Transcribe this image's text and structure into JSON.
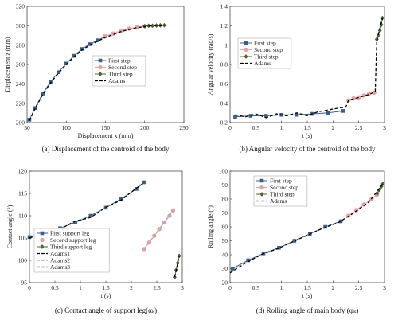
{
  "chart_data": [
    {
      "type": "line",
      "caption": "(a) Displacement of the centroid of the body",
      "xlabel": "Displacement  x (mm)",
      "ylabel": "Displacement  z (mm)",
      "xlim": [
        50,
        250
      ],
      "ylim": [
        200,
        320
      ],
      "xticks": [
        50,
        100,
        150,
        200,
        250
      ],
      "yticks": [
        200,
        220,
        240,
        260,
        280,
        300,
        320
      ],
      "legend_position": "center-right",
      "series": [
        {
          "name": "First step",
          "style": "marker-square",
          "color": "#3a5f8a",
          "x": [
            53,
            60,
            70,
            80,
            90,
            100,
            110,
            120,
            130,
            140,
            150
          ],
          "y": [
            203,
            215,
            230,
            242,
            252,
            261,
            269,
            276,
            281,
            285,
            289
          ]
        },
        {
          "name": "Second step",
          "style": "marker-circle",
          "color": "#e8a0a0",
          "x": [
            150,
            160,
            170,
            180,
            190,
            200
          ],
          "y": [
            289,
            292,
            295,
            297,
            298.5,
            299.5
          ]
        },
        {
          "name": "Third step",
          "style": "marker-diamond",
          "color": "#4a6a2a",
          "x": [
            200,
            205,
            210,
            215,
            220,
            225
          ],
          "y": [
            299.5,
            300,
            300,
            300.2,
            300.4,
            300.5
          ]
        },
        {
          "name": "Adams",
          "style": "dashed",
          "color": "#000000",
          "x": [
            53,
            60,
            70,
            80,
            90,
            100,
            110,
            120,
            130,
            140,
            150,
            160,
            170,
            180,
            190,
            200,
            210,
            220,
            225
          ],
          "y": [
            202,
            214,
            229,
            241,
            251,
            260,
            268,
            275,
            280,
            284,
            288,
            291,
            294,
            296,
            298,
            299,
            300,
            300,
            300
          ]
        }
      ]
    },
    {
      "type": "line",
      "caption": "(b) Angular velocity of the centroid of the body",
      "xlabel": "t (s)",
      "ylabel": "Angular velocity (rad/s)",
      "xlim": [
        0,
        3
      ],
      "ylim": [
        0.2,
        1.4
      ],
      "xticks": [
        0,
        0.5,
        1,
        1.5,
        2,
        2.5,
        3
      ],
      "yticks": [
        0.2,
        0.4,
        0.6,
        0.8,
        1,
        1.2,
        1.4
      ],
      "legend_position": "center-left",
      "series": [
        {
          "name": "First step",
          "style": "marker-square",
          "color": "#3a5f8a",
          "x": [
            0.1,
            0.4,
            0.7,
            1.0,
            1.3,
            1.6,
            1.9,
            2.2
          ],
          "y": [
            0.26,
            0.27,
            0.27,
            0.28,
            0.28,
            0.29,
            0.3,
            0.32
          ]
        },
        {
          "name": "Second step",
          "style": "marker-circle",
          "color": "#e8a0a0",
          "x": [
            2.3,
            2.4,
            2.5,
            2.6,
            2.7,
            2.8
          ],
          "y": [
            0.43,
            0.45,
            0.46,
            0.48,
            0.5,
            0.51
          ]
        },
        {
          "name": "Third step",
          "style": "marker-diamond",
          "color": "#4a6a2a",
          "x": [
            2.85,
            2.88,
            2.91,
            2.94,
            2.96
          ],
          "y": [
            1.06,
            1.1,
            1.15,
            1.21,
            1.28
          ]
        },
        {
          "name": "Adams",
          "style": "dashed",
          "color": "#000000",
          "x": [
            0.1,
            0.3,
            0.5,
            0.7,
            0.9,
            1.1,
            1.3,
            1.5,
            1.7,
            1.9,
            2.1,
            2.25,
            2.3,
            2.5,
            2.7,
            2.82,
            2.85,
            2.9,
            2.96
          ],
          "y": [
            0.28,
            0.26,
            0.29,
            0.25,
            0.29,
            0.27,
            0.3,
            0.27,
            0.31,
            0.33,
            0.35,
            0.36,
            0.43,
            0.46,
            0.49,
            0.52,
            1.05,
            1.15,
            1.28
          ]
        }
      ]
    },
    {
      "type": "line",
      "caption": "(c) Contact angle of support leg(αₖ)",
      "xlabel": "t (s)",
      "ylabel": "Contact angle (°)",
      "xlim": [
        0,
        3
      ],
      "ylim": [
        95,
        120
      ],
      "xticks": [
        0,
        0.5,
        1,
        1.5,
        2,
        2.5,
        3
      ],
      "yticks": [
        95,
        100,
        105,
        110,
        115,
        120
      ],
      "legend_position": "lower-left",
      "series": [
        {
          "name": "First support leg",
          "style": "marker-square",
          "color": "#3a5f8a",
          "x": [
            0,
            0.3,
            0.6,
            0.9,
            1.2,
            1.5,
            1.8,
            2.1,
            2.25
          ],
          "y": [
            105.2,
            106,
            107.2,
            108.5,
            110,
            111.8,
            113.8,
            116,
            117.5
          ]
        },
        {
          "name": "Second support leg",
          "style": "marker-circle",
          "color": "#e8a0a0",
          "x": [
            2.25,
            2.35,
            2.45,
            2.55,
            2.65,
            2.75,
            2.82
          ],
          "y": [
            102.5,
            104,
            105.5,
            107,
            108.5,
            110,
            111.2
          ]
        },
        {
          "name": "Third support leg",
          "style": "marker-diamond",
          "color": "#4a6a2a",
          "x": [
            2.85,
            2.88,
            2.91,
            2.94
          ],
          "y": [
            96.2,
            97.8,
            99.4,
            101
          ]
        },
        {
          "name": "Adams1",
          "style": "dashed",
          "color": "#000000",
          "x": [
            0,
            0.3,
            0.6,
            0.9,
            1.2,
            1.5,
            1.8,
            2.1,
            2.25
          ],
          "y": [
            105,
            106.2,
            107,
            108.8,
            109.6,
            111.9,
            113.5,
            116.2,
            117.4
          ]
        },
        {
          "name": "Adams2",
          "style": "dashed",
          "color": "#88b4c8",
          "x": [
            2.25,
            2.82
          ],
          "y": [
            102.5,
            111.2
          ]
        },
        {
          "name": "Adams3",
          "style": "dashed",
          "color": "#000000",
          "x": [
            2.85,
            2.94
          ],
          "y": [
            96.2,
            101
          ]
        }
      ]
    },
    {
      "type": "line",
      "caption": "(d) Rolling angle of main body (φₖ)",
      "xlabel": "t (s)",
      "ylabel": "Rolling angle (°)",
      "xlim": [
        0,
        3
      ],
      "ylim": [
        20,
        100
      ],
      "xticks": [
        0,
        0.5,
        1,
        1.5,
        2,
        2.5,
        3
      ],
      "yticks": [
        20,
        30,
        40,
        50,
        60,
        70,
        80,
        90,
        100
      ],
      "legend_position": "top-left",
      "series": [
        {
          "name": "First step",
          "style": "marker-square",
          "color": "#3a5f8a",
          "x": [
            0.05,
            0.35,
            0.65,
            0.95,
            1.25,
            1.55,
            1.85,
            2.15
          ],
          "y": [
            30,
            36,
            41,
            45,
            50,
            55,
            60,
            64
          ]
        },
        {
          "name": "Second step",
          "style": "marker-circle",
          "color": "#e8a0a0",
          "x": [
            2.3,
            2.45,
            2.6,
            2.75,
            2.85
          ],
          "y": [
            68,
            72,
            76,
            80,
            83
          ]
        },
        {
          "name": "Third step",
          "style": "marker-diamond",
          "color": "#4a6a2a",
          "x": [
            2.86,
            2.9,
            2.94,
            2.97
          ],
          "y": [
            84,
            86.5,
            89,
            91
          ]
        },
        {
          "name": "Adams",
          "style": "dashed",
          "color": "#000000",
          "x": [
            0,
            0.3,
            0.6,
            0.9,
            1.2,
            1.5,
            1.8,
            2.1,
            2.4,
            2.7,
            2.97
          ],
          "y": [
            27,
            34,
            40,
            44,
            49,
            54,
            59,
            63,
            70,
            78,
            91
          ]
        }
      ]
    }
  ]
}
